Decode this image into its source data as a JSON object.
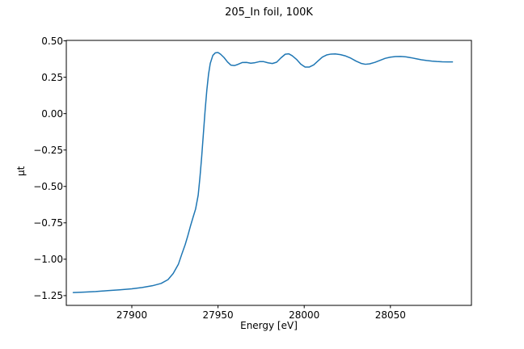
{
  "figure": {
    "background_color": "#ffffff",
    "spine_color": "#000000",
    "tick_color": "#000000"
  },
  "chart_data": {
    "type": "line",
    "title": "205_In foil, 100K",
    "xlabel": "Energy [eV]",
    "ylabel": "μt",
    "legend": null,
    "grid": false,
    "xlim": [
      27862,
      28097
    ],
    "ylim": [
      -1.317,
      0.503
    ],
    "xticks": {
      "values": [
        27900,
        27950,
        28000,
        28050
      ],
      "labels": [
        "27900",
        "27950",
        "28000",
        "28050"
      ]
    },
    "yticks": {
      "values": [
        0.5,
        0.25,
        0.0,
        -0.25,
        -0.5,
        -0.75,
        -1.0,
        -1.25
      ],
      "labels": [
        "0.50",
        "0.25",
        "0.00",
        "−0.25",
        "−0.50",
        "−0.75",
        "−1.00",
        "−1.25"
      ]
    },
    "series": [
      {
        "name": "mu_t",
        "color": "#1f77b4",
        "x": [
          27866,
          27872,
          27879,
          27886,
          27893,
          27900,
          27906,
          27912,
          27917,
          27921,
          27924,
          27927,
          27929,
          27931,
          27932.5,
          27934,
          27935.5,
          27937,
          27938.5,
          27939.5,
          27940.5,
          27941.5,
          27942.5,
          27943.5,
          27944.5,
          27945.5,
          27947,
          27948.5,
          27950,
          27951.5,
          27953.5,
          27955.5,
          27957.5,
          27959.5,
          27961.5,
          27964,
          27966.5,
          27969,
          27971.5,
          27974,
          27976.5,
          27979,
          27981.5,
          27984,
          27986.5,
          27989,
          27991,
          27993,
          27995.5,
          27998,
          28000.5,
          28003,
          28005.5,
          28008,
          28010.5,
          28013,
          28015.5,
          28018,
          28021,
          28024,
          28027,
          28030,
          28033,
          28035.5,
          28038,
          28041,
          28044,
          28047,
          28050,
          28053,
          28056,
          28059,
          28062,
          28065,
          28068,
          28071,
          28074,
          28077,
          28080,
          28083,
          28086
        ],
        "y": [
          -1.229,
          -1.226,
          -1.222,
          -1.216,
          -1.21,
          -1.203,
          -1.194,
          -1.182,
          -1.166,
          -1.14,
          -1.098,
          -1.035,
          -0.965,
          -0.898,
          -0.838,
          -0.773,
          -0.713,
          -0.655,
          -0.56,
          -0.44,
          -0.3,
          -0.14,
          0.02,
          0.16,
          0.27,
          0.345,
          0.4,
          0.418,
          0.42,
          0.408,
          0.385,
          0.355,
          0.333,
          0.33,
          0.338,
          0.351,
          0.352,
          0.346,
          0.35,
          0.357,
          0.357,
          0.349,
          0.344,
          0.353,
          0.383,
          0.408,
          0.411,
          0.398,
          0.373,
          0.34,
          0.32,
          0.32,
          0.335,
          0.362,
          0.388,
          0.403,
          0.409,
          0.41,
          0.405,
          0.396,
          0.381,
          0.361,
          0.345,
          0.339,
          0.342,
          0.352,
          0.366,
          0.38,
          0.388,
          0.392,
          0.393,
          0.39,
          0.384,
          0.377,
          0.37,
          0.365,
          0.361,
          0.358,
          0.356,
          0.355,
          0.355
        ]
      }
    ]
  }
}
